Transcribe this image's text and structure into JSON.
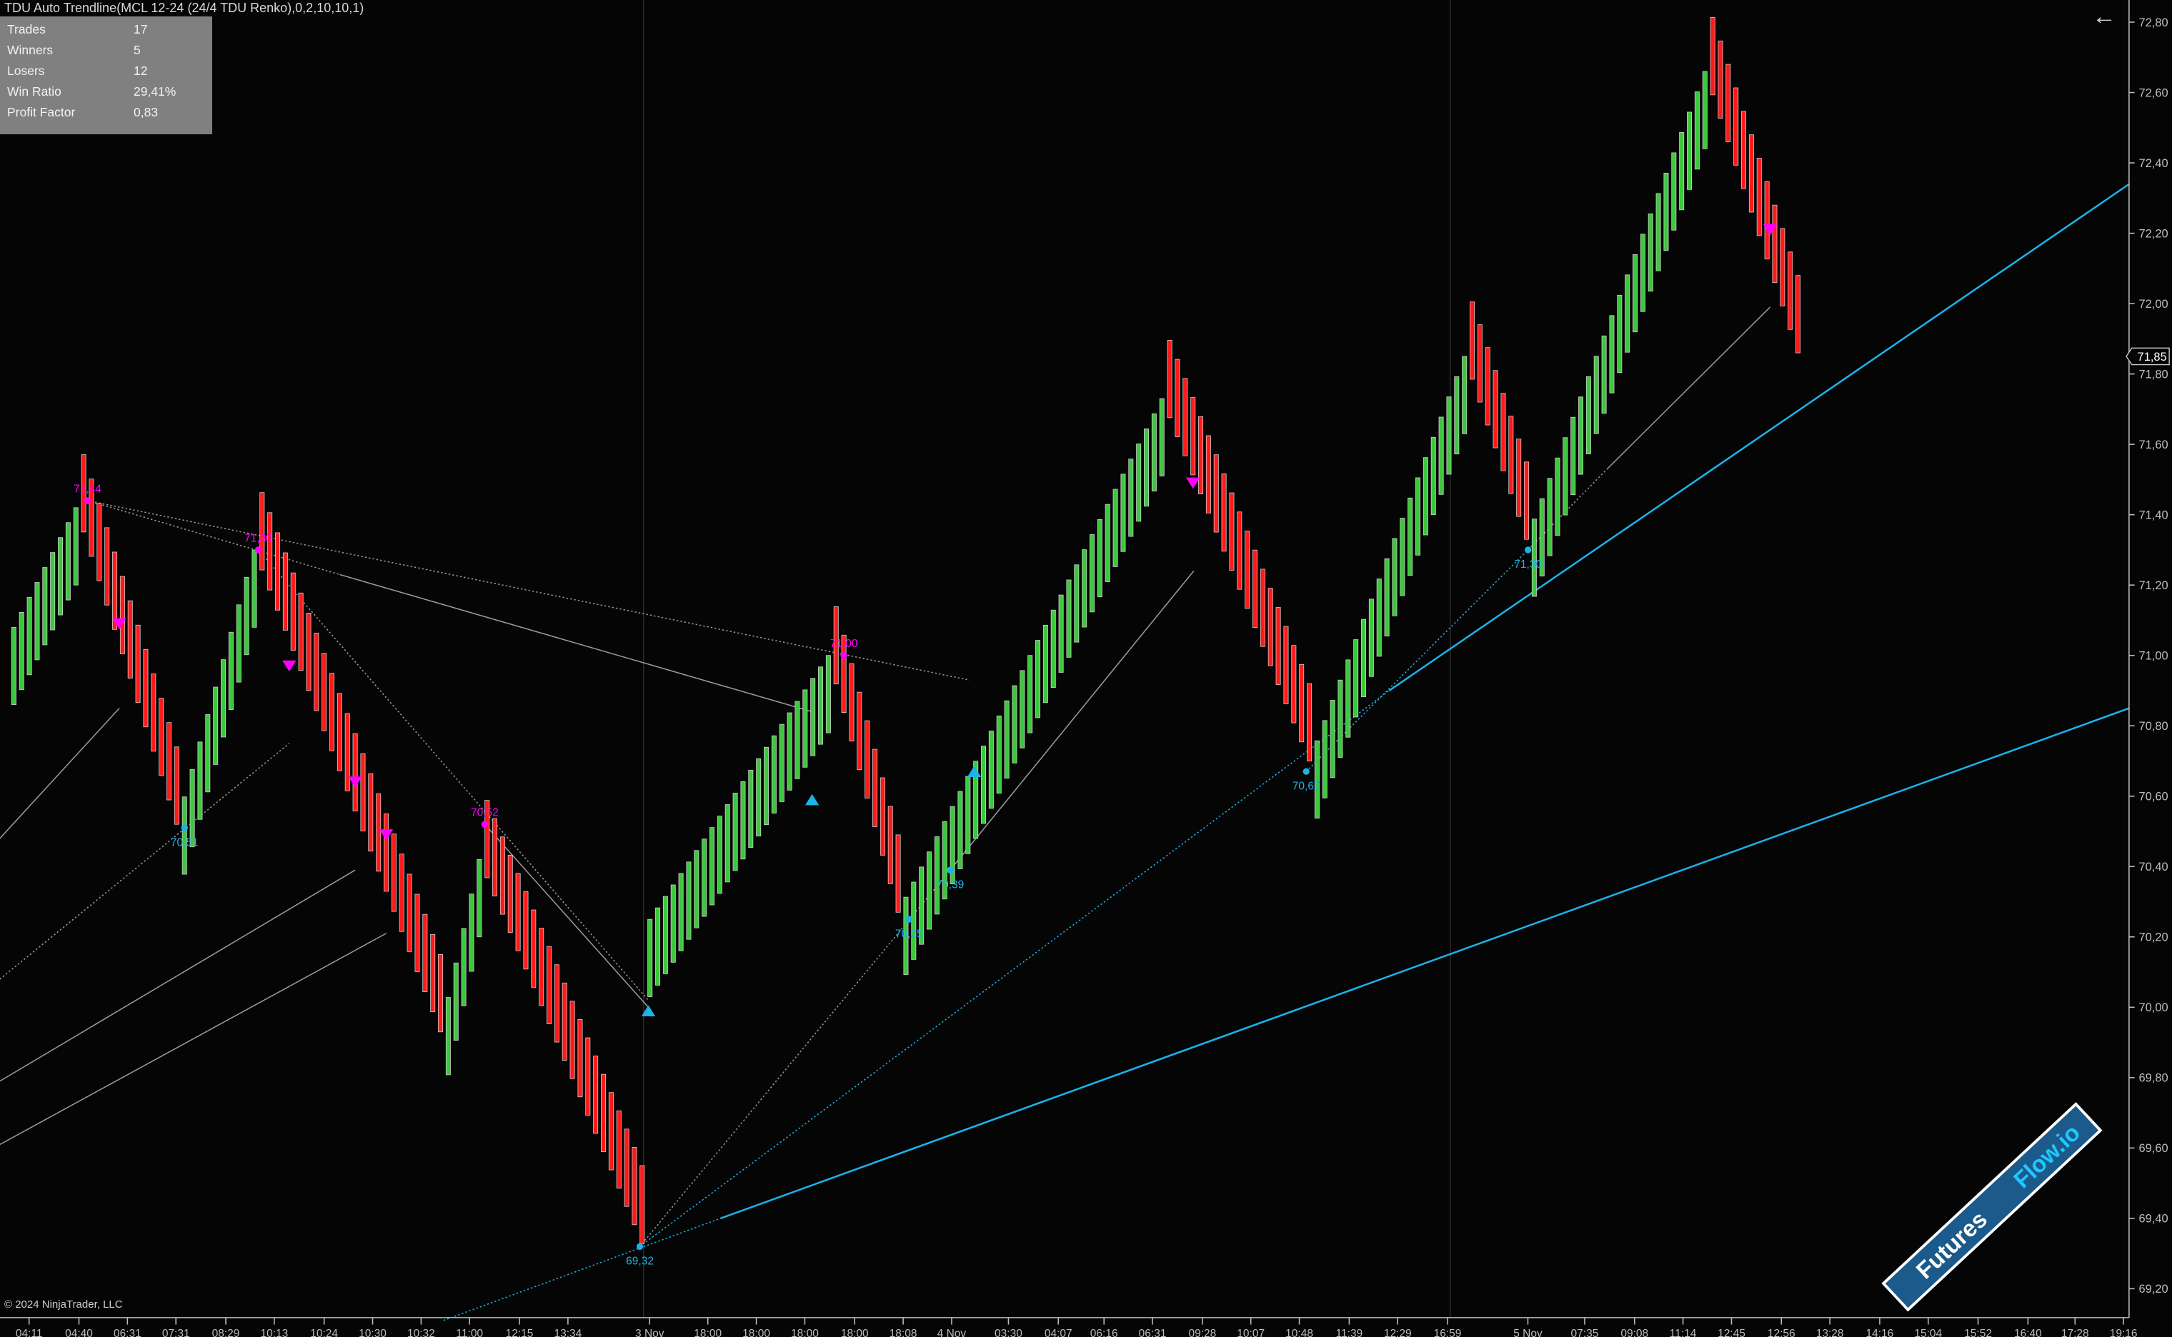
{
  "header": {
    "indicator_title": "TDU Auto Trendline(MCL 12-24 (24/4 TDU Renko),0,2,10,10,1)",
    "back_icon": "arrow-left-icon"
  },
  "stats": [
    {
      "label": "Trades",
      "value": "17"
    },
    {
      "label": "Winners",
      "value": "5"
    },
    {
      "label": "Losers",
      "value": "12"
    },
    {
      "label": "Win Ratio",
      "value": "29,41%"
    },
    {
      "label": "Profit Factor",
      "value": "0,83"
    }
  ],
  "copyright": "© 2024 NinjaTrader, LLC",
  "watermark": {
    "part1": "Futures",
    "part2": "Flow.io"
  },
  "colors": {
    "background": "#050505",
    "up_bar": "#3cc83c",
    "down_bar": "#ff1a1a",
    "swing_high": "#ff00ff",
    "swing_low": "#1ab4ea",
    "trendline": "#1ab4ea",
    "gray_line": "#9a9a9a",
    "watermark_band": "#1b5a8a"
  },
  "chart_data": {
    "type": "renko",
    "instrument": "MCL 12-24",
    "y_axis": {
      "range": [
        69.2,
        72.8
      ],
      "ticks": [
        "72,80",
        "72,60",
        "72,40",
        "72,20",
        "72,00",
        "71,80",
        "71,60",
        "71,40",
        "71,20",
        "71,00",
        "70,80",
        "70,60",
        "70,40",
        "70,20",
        "70,00",
        "69,80",
        "69,60",
        "69,40",
        "69,20"
      ],
      "tick_values": [
        72.8,
        72.6,
        72.4,
        72.2,
        72.0,
        71.8,
        71.6,
        71.4,
        71.2,
        71.0,
        70.8,
        70.6,
        70.4,
        70.2,
        70.0,
        69.8,
        69.6,
        69.4,
        69.2
      ],
      "last_price": 71.85,
      "last_price_label": "71,85"
    },
    "x_axis": {
      "ticks": [
        "04:11",
        "04:40",
        "06:31",
        "07:31",
        "08:29",
        "10:13",
        "10:24",
        "10:30",
        "10:32",
        "11:00",
        "12:15",
        "13:34",
        "3 Nov",
        "18:00",
        "18:00",
        "18:00",
        "18:00",
        "18:08",
        "4 Nov",
        "03:30",
        "04:07",
        "06:16",
        "06:31",
        "09:28",
        "10:07",
        "10:48",
        "11:39",
        "12:29",
        "16:59",
        "5 Nov",
        "07:35",
        "09:08",
        "11:14",
        "12:45",
        "12:56",
        "13:28",
        "14:16",
        "15:04",
        "15:52",
        "16:40",
        "17:28",
        "19:16"
      ],
      "session_breaks_bar": [
        81,
        185
      ]
    },
    "swing_path": [
      {
        "bar": 0,
        "close": 71.08
      },
      {
        "bar": 8,
        "close": 71.42
      },
      {
        "bar": 21,
        "close": 70.52
      },
      {
        "bar": 31,
        "close": 71.3
      },
      {
        "bar": 55,
        "close": 69.93
      },
      {
        "bar": 60,
        "close": 70.42
      },
      {
        "bar": 81,
        "close": 69.33
      },
      {
        "bar": 82,
        "close": 70.25
      },
      {
        "bar": 105,
        "close": 71.0
      },
      {
        "bar": 114,
        "close": 70.27
      },
      {
        "bar": 148,
        "close": 71.73
      },
      {
        "bar": 167,
        "close": 70.7
      },
      {
        "bar": 187,
        "close": 71.85
      },
      {
        "bar": 195,
        "close": 71.33
      },
      {
        "bar": 218,
        "close": 72.66
      },
      {
        "bar": 230,
        "close": 71.86
      }
    ],
    "brick_body": 0.22,
    "pivot_labels": [
      {
        "type": "high",
        "bar": 9.5,
        "price": 71.44,
        "label": "71,44"
      },
      {
        "type": "high",
        "bar": 31.5,
        "price": 71.3,
        "label": "71,30"
      },
      {
        "type": "high",
        "bar": 60.7,
        "price": 70.52,
        "label": "70,52"
      },
      {
        "type": "high",
        "bar": 107,
        "price": 71.0,
        "label": "71,00"
      },
      {
        "type": "low",
        "bar": 22,
        "price": 70.51,
        "label": "70,51"
      },
      {
        "type": "low",
        "bar": 80.7,
        "price": 69.32,
        "label": "69,32"
      },
      {
        "type": "low",
        "bar": 115.4,
        "price": 70.25,
        "label": "70,25"
      },
      {
        "type": "low",
        "bar": 120.7,
        "price": 70.39,
        "label": "70,39"
      },
      {
        "type": "low",
        "bar": 166.6,
        "price": 70.67,
        "label": "70,67"
      },
      {
        "type": "low",
        "bar": 195.2,
        "price": 71.3,
        "label": "71,30"
      }
    ],
    "signals": [
      {
        "type": "sell",
        "bar": 13.6,
        "price": 71.09
      },
      {
        "type": "sell",
        "bar": 35.5,
        "price": 70.97
      },
      {
        "type": "sell",
        "bar": 44,
        "price": 70.64
      },
      {
        "type": "sell",
        "bar": 48,
        "price": 70.49
      },
      {
        "type": "sell",
        "bar": 152,
        "price": 71.49
      },
      {
        "type": "sell",
        "bar": 226.4,
        "price": 72.21
      },
      {
        "type": "buy",
        "bar": 81.8,
        "price": 69.99
      },
      {
        "type": "buy",
        "bar": 102.9,
        "price": 70.59
      },
      {
        "type": "buy",
        "bar": 123.8,
        "price": 70.67
      }
    ],
    "trendlines": [
      {
        "color": "cyan",
        "style": "dotted",
        "from": {
          "bar": 80.7,
          "price": 69.32
        },
        "to": {
          "bar": 177.3,
          "price": 70.9
        }
      },
      {
        "color": "cyan",
        "style": "solid",
        "from": {
          "bar": 177.3,
          "price": 70.9
        },
        "to": {
          "bar": 272.7,
          "price": 72.34
        }
      },
      {
        "color": "cyan",
        "style": "dotted",
        "from": {
          "bar": 55.4,
          "price": 69.11
        },
        "to": {
          "bar": 91.1,
          "price": 69.4
        }
      },
      {
        "color": "cyan",
        "style": "solid",
        "from": {
          "bar": 91.1,
          "price": 69.4
        },
        "to": {
          "bar": 272.7,
          "price": 70.85
        }
      },
      {
        "color": "cyan",
        "style": "dotted",
        "from": {
          "bar": 166.6,
          "price": 70.67
        },
        "to": {
          "bar": 195.2,
          "price": 71.3
        }
      },
      {
        "color": "gray",
        "style": "dotted",
        "from": {
          "bar": 9.5,
          "price": 71.44
        },
        "to": {
          "bar": 123.2,
          "price": 70.93
        }
      },
      {
        "color": "gray",
        "style": "dotted",
        "from": {
          "bar": 9.5,
          "price": 71.44
        },
        "to": {
          "bar": 42,
          "price": 71.23
        }
      },
      {
        "color": "gray",
        "style": "solid",
        "from": {
          "bar": 42,
          "price": 71.23
        },
        "to": {
          "bar": 102.9,
          "price": 70.84
        }
      },
      {
        "color": "gray",
        "style": "dotted",
        "from": {
          "bar": 31.5,
          "price": 71.3
        },
        "to": {
          "bar": 81.8,
          "price": 70.02
        }
      },
      {
        "color": "gray",
        "style": "solid",
        "from": {
          "bar": 60.7,
          "price": 70.52
        },
        "to": {
          "bar": 81.8,
          "price": 70.0
        }
      },
      {
        "color": "gray",
        "style": "solid",
        "from": {
          "bar": -1.8,
          "price": 70.48
        },
        "to": {
          "bar": 13.6,
          "price": 70.85
        }
      },
      {
        "color": "gray",
        "style": "dotted",
        "from": {
          "bar": -1.8,
          "price": 70.08
        },
        "to": {
          "bar": 35.5,
          "price": 70.75
        }
      },
      {
        "color": "gray",
        "style": "solid",
        "from": {
          "bar": -1.8,
          "price": 69.79
        },
        "to": {
          "bar": 44,
          "price": 70.39
        }
      },
      {
        "color": "gray",
        "style": "solid",
        "from": {
          "bar": -1.8,
          "price": 69.61
        },
        "to": {
          "bar": 48,
          "price": 70.21
        }
      },
      {
        "color": "gray",
        "style": "dotted",
        "from": {
          "bar": 80.7,
          "price": 69.32
        },
        "to": {
          "bar": 120.7,
          "price": 70.39
        }
      },
      {
        "color": "gray",
        "style": "solid",
        "from": {
          "bar": 120.7,
          "price": 70.39
        },
        "to": {
          "bar": 152.1,
          "price": 71.24
        }
      },
      {
        "color": "gray",
        "style": "dotted",
        "from": {
          "bar": 195.2,
          "price": 71.3
        },
        "to": {
          "bar": 205.4,
          "price": 71.53
        }
      },
      {
        "color": "gray",
        "style": "solid",
        "from": {
          "bar": 205.4,
          "price": 71.53
        },
        "to": {
          "bar": 226.4,
          "price": 71.99
        }
      }
    ]
  }
}
